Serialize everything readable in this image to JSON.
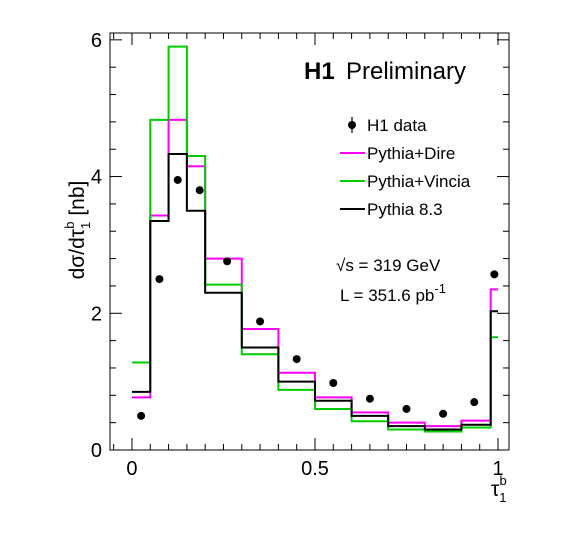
{
  "chart_data": {
    "type": "step",
    "title_bold": "H1",
    "title_rest": "Preliminary",
    "ylabel": {
      "main": "dσ/dτ",
      "sub": "1",
      "sup": "b",
      "unit": " [nb]"
    },
    "xlabel": {
      "main": "τ",
      "sub": "1",
      "sup": "b"
    },
    "xlim": [
      -0.06,
      1.03
    ],
    "ylim": [
      0,
      6.1
    ],
    "xticks": [
      0,
      0.5,
      1
    ],
    "xtick_labels": [
      "0",
      "0.5",
      "1"
    ],
    "yticks": [
      0,
      2,
      4,
      6
    ],
    "ytick_labels": [
      "0",
      "2",
      "4",
      "6"
    ],
    "bin_edges": [
      0,
      0.05,
      0.1,
      0.15,
      0.2,
      0.3,
      0.4,
      0.5,
      0.6,
      0.7,
      0.8,
      0.9,
      0.98,
      1.0
    ],
    "series": [
      {
        "name": "H1 data",
        "kind": "points",
        "color": "#000000",
        "x": [
          0.025,
          0.075,
          0.125,
          0.185,
          0.26,
          0.35,
          0.45,
          0.55,
          0.65,
          0.75,
          0.85,
          0.935,
          0.99
        ],
        "values": [
          0.5,
          2.5,
          3.95,
          3.8,
          2.76,
          1.88,
          1.33,
          0.98,
          0.75,
          0.6,
          0.53,
          0.7,
          2.57
        ]
      },
      {
        "name": "Pythia+Dire",
        "kind": "step",
        "color": "#ff00ff",
        "values": [
          0.77,
          3.43,
          4.83,
          4.15,
          2.8,
          1.77,
          1.13,
          0.77,
          0.55,
          0.4,
          0.35,
          0.43,
          2.35
        ]
      },
      {
        "name": "Pythia+Vincia",
        "kind": "step",
        "color": "#00cc00",
        "values": [
          1.28,
          4.83,
          5.9,
          4.3,
          2.42,
          1.4,
          0.88,
          0.6,
          0.42,
          0.3,
          0.27,
          0.33,
          1.65
        ]
      },
      {
        "name": "Pythia 8.3",
        "kind": "step",
        "color": "#000000",
        "values": [
          0.85,
          3.35,
          4.33,
          3.5,
          2.3,
          1.5,
          1.0,
          0.72,
          0.5,
          0.35,
          0.3,
          0.37,
          2.03
        ]
      }
    ],
    "info": {
      "sqrt_s": "√s = 319 GeV",
      "lumi_main": "L = 351.6 pb",
      "lumi_sup": "-1"
    },
    "legend_position": "upper-right",
    "grid": false
  }
}
